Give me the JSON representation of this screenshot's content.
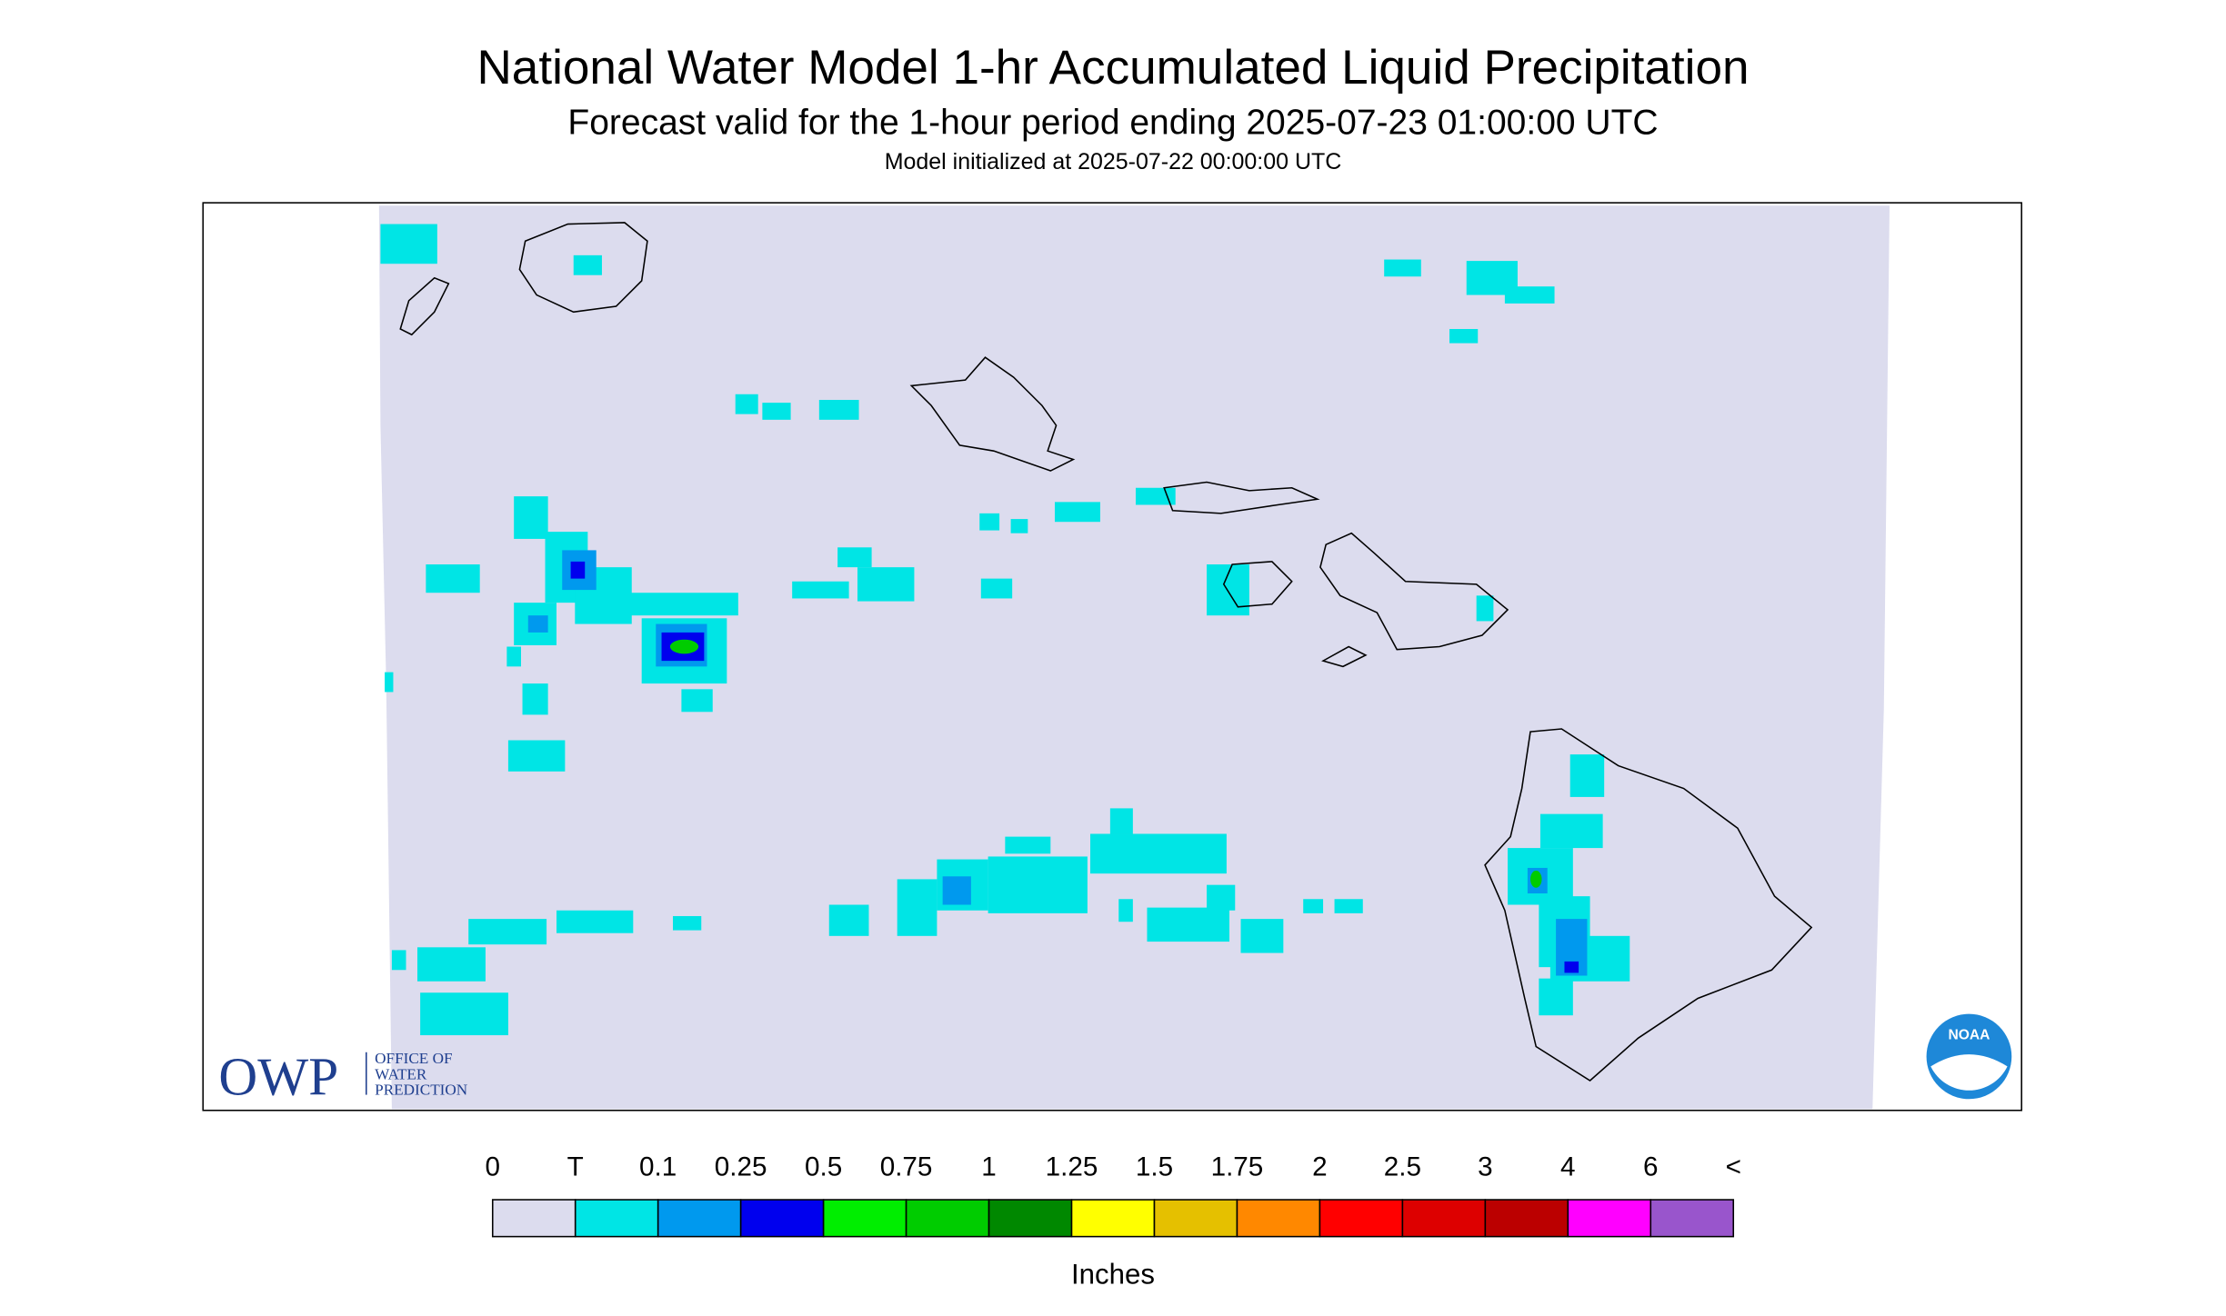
{
  "header": {
    "title": "National Water Model 1-hr Accumulated Liquid Precipitation",
    "subtitle": "Forecast valid for the 1-hour period ending 2025-07-23 01:00:00 UTC",
    "initialized": "Model initialized at 2025-07-22 00:00:00 UTC"
  },
  "logo": {
    "acronym": "OWP",
    "lines": [
      "OFFICE OF",
      "WATER",
      "PREDICTION"
    ],
    "agency": "NOAA"
  },
  "legend": {
    "labels": [
      "0",
      "T",
      "0.1",
      "0.25",
      "0.5",
      "0.75",
      "1",
      "1.25",
      "1.5",
      "1.75",
      "2",
      "2.5",
      "3",
      "4",
      "6",
      "<"
    ],
    "colors": [
      "#dcdcee",
      "#00e5e5",
      "#0099ee",
      "#0000ee",
      "#00ee00",
      "#00cc00",
      "#008800",
      "#ffff00",
      "#e5c000",
      "#ff8800",
      "#ff0000",
      "#dd0000",
      "#bb0000",
      "#ff00ff",
      "#9955cc"
    ],
    "unit": "Inches"
  }
}
